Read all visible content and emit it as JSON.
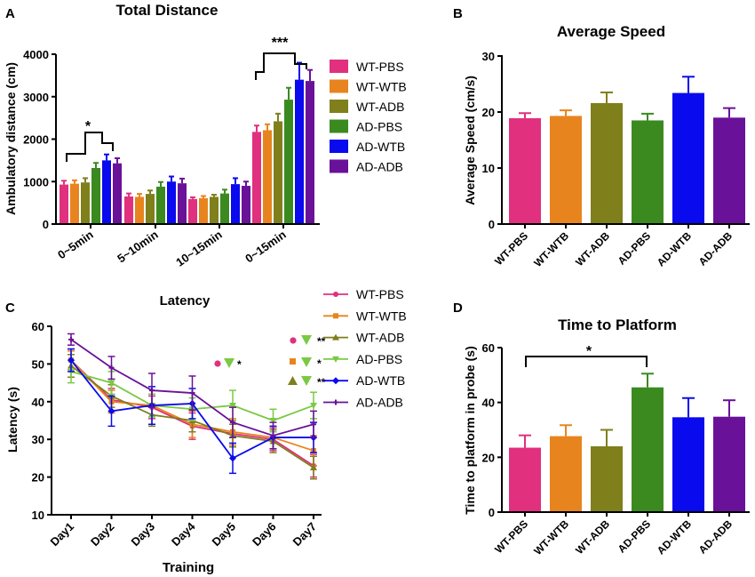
{
  "colors": {
    "WT-PBS": "#e0307e",
    "WT-WTB": "#e8841e",
    "WT-ADB": "#7f7f1c",
    "AD-PBS": "#3a8a1f",
    "AD-WTB": "#0a0aee",
    "AD-ADB": "#6a1199",
    "AD-PBS-line": "#7ac943"
  },
  "chart_data": [
    {
      "panel": "A",
      "type": "bar",
      "title": "Total Distance",
      "xlabel": "",
      "ylabel": "Ambulatory distance (cm)",
      "ylim": [
        0,
        4000
      ],
      "yticks": [
        "0",
        "1000",
        "2000",
        "3000",
        "4000"
      ],
      "categories": [
        "0~5min",
        "5~10min",
        "10~15min",
        "0~15min"
      ],
      "series": [
        {
          "name": "WT-PBS",
          "values": [
            930,
            650,
            590,
            2170
          ],
          "errors": [
            90,
            70,
            40,
            150
          ]
        },
        {
          "name": "WT-WTB",
          "values": [
            950,
            640,
            610,
            2210
          ],
          "errors": [
            80,
            70,
            50,
            140
          ]
        },
        {
          "name": "WT-ADB",
          "values": [
            980,
            710,
            640,
            2420
          ],
          "errors": [
            100,
            80,
            50,
            180
          ]
        },
        {
          "name": "AD-PBS",
          "values": [
            1320,
            880,
            720,
            2930
          ],
          "errors": [
            120,
            110,
            90,
            280
          ]
        },
        {
          "name": "AD-WTB",
          "values": [
            1500,
            1000,
            940,
            3400
          ],
          "errors": [
            140,
            120,
            140,
            400
          ]
        },
        {
          "name": "AD-ADB",
          "values": [
            1430,
            960,
            900,
            3370
          ],
          "errors": [
            120,
            110,
            100,
            260
          ]
        }
      ],
      "significance": [
        "*",
        "***"
      ]
    },
    {
      "panel": "B",
      "type": "bar",
      "title": "Average Speed",
      "ylabel": "Average Speed (cm/s)",
      "ylim": [
        0,
        30
      ],
      "yticks": [
        "0",
        "10",
        "20",
        "30"
      ],
      "categories": [
        "WT-PBS",
        "WT-WTB",
        "WT-ADB",
        "AD-PBS",
        "AD-WTB",
        "AD-ADB"
      ],
      "values": [
        18.9,
        19.3,
        21.6,
        18.5,
        23.4,
        19.0
      ],
      "errors": [
        0.9,
        1.0,
        1.9,
        1.2,
        2.9,
        1.7
      ]
    },
    {
      "panel": "C",
      "type": "line",
      "title": "Latency",
      "xlabel": "Training",
      "ylabel": "Latency (s)",
      "ylim": [
        10,
        60
      ],
      "yticks": [
        "10",
        "20",
        "30",
        "40",
        "50",
        "60"
      ],
      "categories": [
        "Day1",
        "Day2",
        "Day3",
        "Day4",
        "Day5",
        "Day6",
        "Day7"
      ],
      "series": [
        {
          "name": "WT-PBS",
          "marker": "circle",
          "values": [
            51,
            40.5,
            38.5,
            33.5,
            31.5,
            30,
            23
          ],
          "errors": [
            2.5,
            3,
            3,
            3.5,
            3.5,
            3,
            3
          ]
        },
        {
          "name": "WT-WTB",
          "marker": "square",
          "values": [
            51,
            40,
            39,
            34,
            32,
            30.5,
            27
          ],
          "errors": [
            2.5,
            3,
            3,
            3.5,
            3.5,
            3,
            4
          ]
        },
        {
          "name": "WT-ADB",
          "marker": "triangle",
          "values": [
            49.5,
            41.5,
            36.5,
            35,
            31,
            29.5,
            22.5
          ],
          "errors": [
            3,
            3,
            3,
            3,
            3,
            3,
            3
          ]
        },
        {
          "name": "AD-PBS",
          "marker": "triangle-down",
          "values": [
            48,
            45,
            39,
            38,
            39,
            35,
            39
          ],
          "errors": [
            3,
            3,
            3,
            3,
            4,
            3,
            3.5
          ]
        },
        {
          "name": "AD-WTB",
          "marker": "diamond",
          "values": [
            51,
            37.5,
            39,
            39.5,
            25,
            30.5,
            30.5
          ],
          "errors": [
            3,
            4,
            5,
            4,
            4,
            3,
            4
          ]
        },
        {
          "name": "AD-ADB",
          "marker": "plus",
          "values": [
            56.5,
            49,
            43,
            42.3,
            34.5,
            31,
            34
          ],
          "errors": [
            1.5,
            3,
            4.5,
            4.5,
            4,
            3.5,
            3.5
          ]
        }
      ],
      "annotations": [
        "**",
        "*",
        "*",
        "**"
      ]
    },
    {
      "panel": "D",
      "type": "bar",
      "title": "Time to Platform",
      "ylabel": "Time to platform in probe (s)",
      "ylim": [
        0,
        60
      ],
      "yticks": [
        "0",
        "20",
        "40",
        "60"
      ],
      "categories": [
        "WT-PBS",
        "WT-WTB",
        "WT-ADB",
        "AD-PBS",
        "AD-WTB",
        "AD-ADB"
      ],
      "values": [
        23.5,
        27.7,
        24,
        45.5,
        34.6,
        34.8
      ],
      "errors": [
        4.5,
        4,
        6,
        5,
        7,
        6
      ],
      "significance": [
        "*"
      ]
    }
  ]
}
